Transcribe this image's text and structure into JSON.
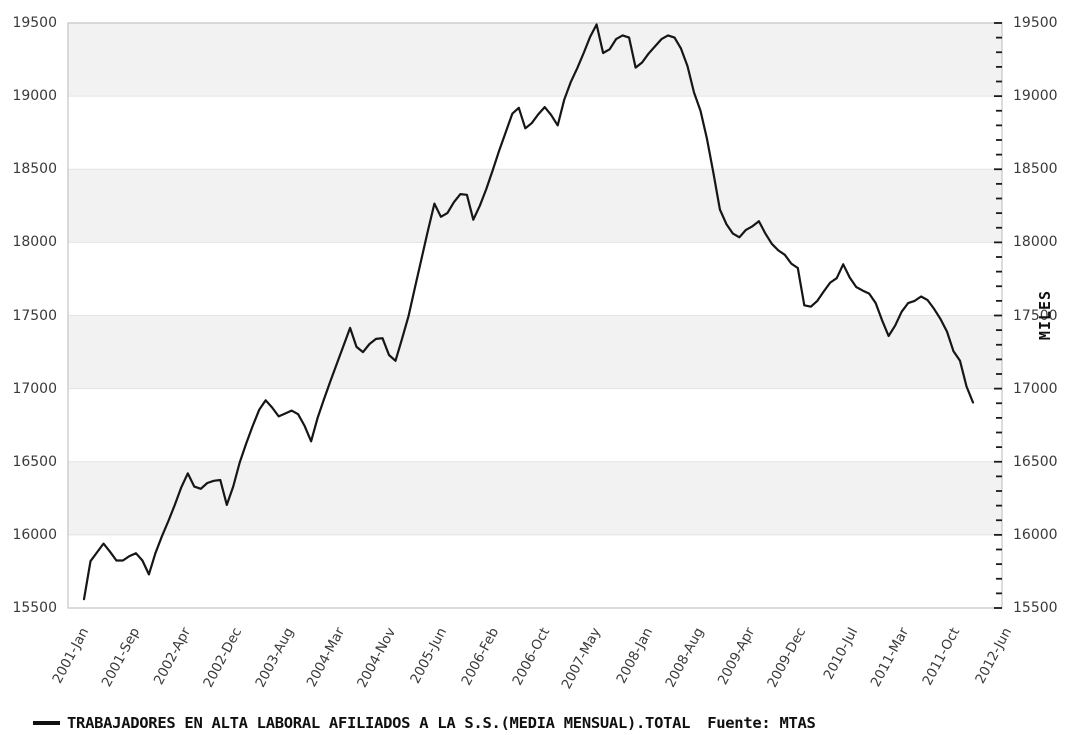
{
  "chart_data": {
    "type": "line",
    "title": "",
    "series": [
      {
        "name": "TRABAJADORES EN ALTA LABORAL AFILIADOS A LA S.S.(MEDIA MENSUAL).TOTAL",
        "frequency": "monthly",
        "start_month": "2001-Jan",
        "end_month": "2012-Jun",
        "values": [
          15560,
          15820,
          15880,
          15940,
          15885,
          15825,
          15825,
          15855,
          15875,
          15825,
          15730,
          15875,
          15990,
          16095,
          16205,
          16325,
          16420,
          16330,
          16315,
          16355,
          16370,
          16375,
          16205,
          16330,
          16495,
          16625,
          16745,
          16855,
          16920,
          16870,
          16810,
          16830,
          16850,
          16825,
          16745,
          16640,
          16800,
          16930,
          17055,
          17175,
          17295,
          17415,
          17285,
          17250,
          17305,
          17340,
          17345,
          17230,
          17190,
          17340,
          17495,
          17690,
          17885,
          18080,
          18265,
          18175,
          18200,
          18275,
          18330,
          18325,
          18155,
          18250,
          18365,
          18495,
          18630,
          18755,
          18880,
          18920,
          18780,
          18815,
          18875,
          18925,
          18870,
          18800,
          18975,
          19095,
          19190,
          19295,
          19405,
          19490,
          19295,
          19320,
          19390,
          19415,
          19400,
          19195,
          19230,
          19290,
          19340,
          19390,
          19415,
          19400,
          19325,
          19205,
          19025,
          18900,
          18710,
          18475,
          18225,
          18125,
          18060,
          18035,
          18085,
          18110,
          18145,
          18060,
          17990,
          17945,
          17915,
          17855,
          17825,
          17570,
          17560,
          17600,
          17665,
          17725,
          17755,
          17850,
          17760,
          17695,
          17670,
          17650,
          17585,
          17465,
          17360,
          17430,
          17525,
          17585,
          17600,
          17630,
          17605,
          17545,
          17475,
          17390,
          17255,
          17190,
          17015,
          16905
        ]
      }
    ],
    "ylim": [
      15500,
      19500
    ],
    "y_tick_labels": [
      "19500",
      "19000",
      "18500",
      "18000",
      "17500",
      "17000",
      "16500",
      "16000",
      "15500"
    ],
    "y_minor_tick_step": 100,
    "y_axis_right_title": "MILES",
    "x_tick_labels": [
      "2001-Jan",
      "2001-Sep",
      "2002-Apr",
      "2002-Dec",
      "2003-Aug",
      "2004-Mar",
      "2004-Nov",
      "2005-Jun",
      "2006-Feb",
      "2006-Oct",
      "2007-May",
      "2008-Jan",
      "2008-Aug",
      "2009-Apr",
      "2009-Dec",
      "2010-Jul",
      "2011-Mar",
      "2011-Oct",
      "2012-Jun"
    ],
    "legend_position": "bottom-left",
    "grid": "horizontal alternating bands",
    "colors": {
      "line": "#161616",
      "band": "#f2f2f2",
      "gridline": "#e4e4e4",
      "border": "#c8c8c8",
      "tick": "#1a1a1a",
      "label_text": "#3a3a3a"
    }
  },
  "legend": {
    "label": "TRABAJADORES EN ALTA LABORAL AFILIADOS A LA S.S.(MEDIA MENSUAL).TOTAL",
    "source": "Fuente: MTAS"
  }
}
